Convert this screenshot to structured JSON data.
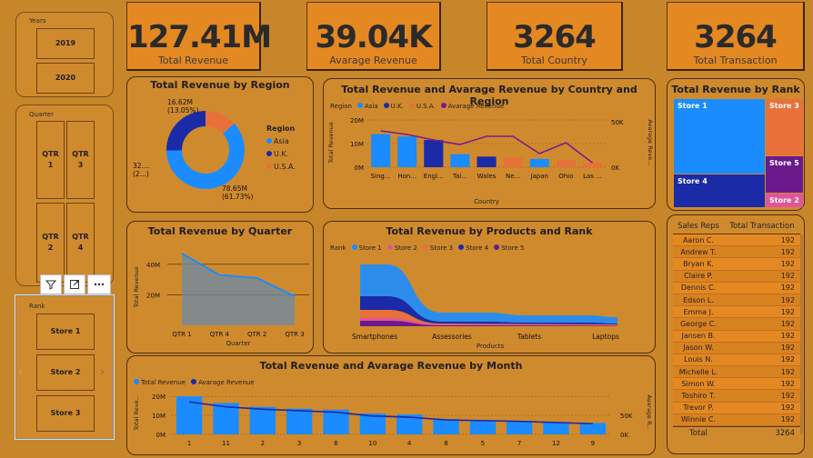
{
  "slicers": {
    "years": {
      "title": "Years",
      "items": [
        "2019",
        "2020"
      ]
    },
    "quarter": {
      "title": "Quarter",
      "items": [
        "QTR\n1",
        "QTR\n3",
        "QTR\n2",
        "QTR\n4"
      ]
    },
    "rank": {
      "title": "Rank",
      "items": [
        "Store 1",
        "Store 2",
        "Store 3"
      ]
    }
  },
  "cards": [
    {
      "value": "127.41M",
      "label": "Total Revenue"
    },
    {
      "value": "39.04K",
      "label": "Avarage Revenue"
    },
    {
      "value": "3264",
      "label": "Total Country"
    },
    {
      "value": "3264",
      "label": "Total Transaction"
    }
  ],
  "colors": {
    "background": "#c8862a",
    "panel": "#d08a2e",
    "card": "#e48822",
    "asia": "#1a8cff",
    "uk": "#1b2aa6",
    "usa": "#e8713a",
    "avg_line": "#7a1a8c",
    "store1": "#1a8cff",
    "store2": "#e0559a",
    "store3": "#e8713a",
    "store4": "#1b2aa6",
    "store5": "#6b1a8c"
  },
  "region_chart": {
    "title": "Total Revenue by Region",
    "legend_title": "Region",
    "labels": {
      "usa": "16.62M\n(13.05%)",
      "uk": "32....\n(2...)",
      "asia": "78.65M\n(61.73%)"
    }
  },
  "country_chart": {
    "title": "Total Revenue and Avarage Revenue by Country and Region",
    "legend_title": "Region",
    "xlabel": "Country",
    "ylabel": "Total Revenue",
    "y2label": "Avarage Reve...",
    "yticks": [
      "20M",
      "10M",
      "0M"
    ],
    "y2ticks": [
      "50K",
      "0K"
    ]
  },
  "rank_treemap": {
    "title": "Total Revenue by Rank",
    "labels": [
      "Store 1",
      "Store 3",
      "Store 5",
      "Store 4",
      "Store 2"
    ]
  },
  "quarter_chart": {
    "title": "Total Revenue by Quarter",
    "xlabel": "Quarter",
    "ylabel": "Total Revenue",
    "yticks": [
      "40M",
      "20M"
    ]
  },
  "products_chart": {
    "title": "Total Revenue by Products and Rank",
    "legend_title": "Rank",
    "xlabel": "Products"
  },
  "month_chart": {
    "title": "Total Revenue and Avarage Revenue by Month",
    "ylabel": "Total Reve...",
    "y2label": "Avarage R...",
    "yticks": [
      "20M",
      "10M",
      "0M"
    ],
    "y2ticks": [
      "50K",
      "0K"
    ]
  },
  "table": {
    "headers": [
      "Sales Reps",
      "Total Transaction"
    ],
    "rows": [
      [
        "Aaron C.",
        "192"
      ],
      [
        "Andrew T.",
        "192"
      ],
      [
        "Bryan K.",
        "192"
      ],
      [
        "Claire P.",
        "192"
      ],
      [
        "Dennis C.",
        "192"
      ],
      [
        "Edson L.",
        "192"
      ],
      [
        "Emma J.",
        "192"
      ],
      [
        "George C.",
        "192"
      ],
      [
        "Jansen B.",
        "192"
      ],
      [
        "Jason W.",
        "192"
      ],
      [
        "Louis N.",
        "192"
      ],
      [
        "Michelle L.",
        "192"
      ],
      [
        "Simon W.",
        "192"
      ],
      [
        "Toshiro T.",
        "192"
      ],
      [
        "Trevor P.",
        "192"
      ],
      [
        "Winnie C.",
        "192"
      ]
    ],
    "total_label": "Total",
    "total_value": "3264"
  },
  "chart_data": [
    {
      "type": "pie",
      "title": "Total Revenue by Region",
      "categories": [
        "Asia",
        "U.K.",
        "U.S.A."
      ],
      "values": [
        78.65,
        32.14,
        16.62
      ],
      "unit": "M",
      "legend": "right"
    },
    {
      "type": "bar",
      "title": "Total Revenue and Avarage Revenue by Country and Region",
      "categories": [
        "Sing...",
        "Hon...",
        "Engl...",
        "Tai...",
        "Wales",
        "Ne...",
        "Japan",
        "Ohio",
        "Las ..."
      ],
      "series": [
        {
          "name": "Total Revenue",
          "values": [
            14,
            13,
            11.5,
            5.5,
            4.5,
            4,
            3.5,
            3,
            2
          ]
        },
        {
          "name": "Avarage Revenue",
          "type": "line",
          "values": [
            40,
            36,
            30,
            25,
            34,
            34,
            15,
            27,
            5
          ]
        }
      ],
      "region": [
        "Asia",
        "Asia",
        "U.K.",
        "Asia",
        "U.K.",
        "U.S.A.",
        "Asia",
        "U.S.A.",
        "U.S.A."
      ],
      "ylim": [
        0,
        20
      ],
      "y2lim": [
        0,
        50
      ],
      "legend": "top-left"
    },
    {
      "type": "area",
      "title": "Total Revenue by Quarter",
      "categories": [
        "QTR 1",
        "QTR 4",
        "QTR 2",
        "QTR 3"
      ],
      "values": [
        47,
        33,
        31,
        19
      ],
      "ylim": [
        0,
        50
      ],
      "unit": "M"
    },
    {
      "type": "bar",
      "title": "Total Revenue and Avarage Revenue by Month",
      "categories": [
        "1",
        "11",
        "2",
        "3",
        "6",
        "10",
        "4",
        "8",
        "5",
        "7",
        "12",
        "9"
      ],
      "series": [
        {
          "name": "Total Revenue",
          "values": [
            20,
            16.5,
            14.5,
            13.5,
            13,
            11,
            10.5,
            8,
            7.5,
            7,
            6.5,
            6
          ]
        },
        {
          "name": "Avarage Revenue",
          "type": "line",
          "values": [
            85,
            72,
            66,
            62,
            58,
            48,
            45,
            38,
            36,
            34,
            31,
            28
          ]
        }
      ],
      "ylim": [
        0,
        22
      ],
      "y2lim": [
        0,
        100
      ],
      "legend": "top-left"
    }
  ]
}
